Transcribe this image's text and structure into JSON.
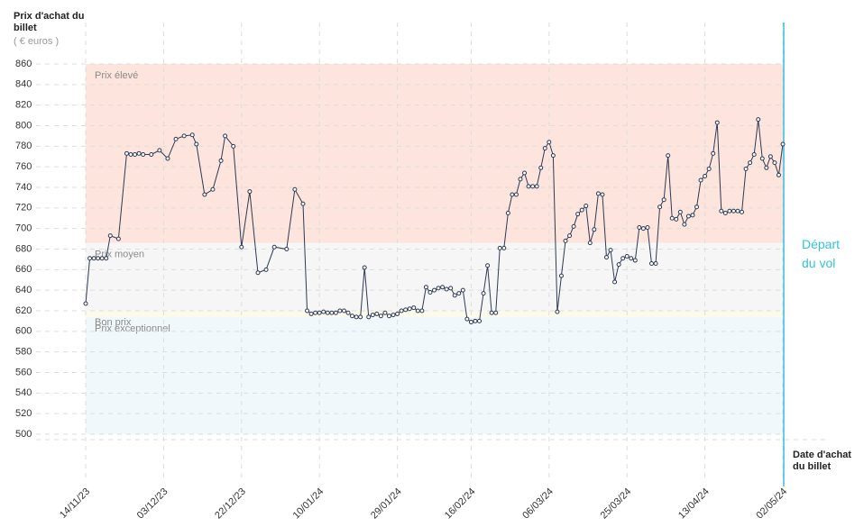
{
  "chart_data": {
    "type": "line",
    "y_label": "Prix d'achat du billet",
    "y_unit": "( € euros )",
    "x_label": "Date d'achat du billet",
    "departure_label": "Départ du vol",
    "ylim": [
      500,
      860
    ],
    "yticks": [
      500,
      520,
      540,
      560,
      580,
      600,
      620,
      640,
      660,
      680,
      700,
      720,
      740,
      760,
      780,
      800,
      820,
      840,
      860
    ],
    "xlim": [
      "14/11/23",
      "02/05/24"
    ],
    "xticks": [
      "14/11/23",
      "03/12/23",
      "22/12/23",
      "10/01/24",
      "29/01/24",
      "16/02/24",
      "06/03/24",
      "25/03/24",
      "13/04/24",
      "02/05/24"
    ],
    "grid": true,
    "bands": [
      {
        "label": "Prix élevé",
        "from": 686,
        "to": 860,
        "color": "#fde4dc"
      },
      {
        "label": "Prix moyen",
        "from": 620,
        "to": 686,
        "color": "#f6f6f6"
      },
      {
        "label": "Bon prix",
        "from": 614,
        "to": 620,
        "color": "#fcfbe9"
      },
      {
        "label": "Prix exceptionnel",
        "from": 500,
        "to": 614,
        "color": "#f1f8fb"
      }
    ],
    "series": [
      {
        "color": "#2d3a55",
        "x": [
          "14/11/23",
          "15/11/23",
          "16/11/23",
          "17/11/23",
          "18/11/23",
          "19/11/23",
          "20/11/23",
          "22/11/23",
          "24/11/23",
          "25/11/23",
          "26/11/23",
          "27/11/23",
          "28/11/23",
          "30/11/23",
          "02/12/23",
          "04/12/23",
          "06/12/23",
          "08/12/23",
          "10/12/23",
          "11/12/23",
          "13/12/23",
          "15/12/23",
          "17/12/23",
          "18/12/23",
          "20/12/23",
          "22/12/23",
          "24/12/23",
          "26/12/23",
          "28/12/23",
          "30/12/23",
          "02/01/24",
          "04/01/24",
          "06/01/24",
          "07/01/24",
          "08/01/24",
          "09/01/24",
          "10/01/24",
          "11/01/24",
          "12/01/24",
          "13/01/24",
          "14/01/24",
          "15/01/24",
          "16/01/24",
          "17/01/24",
          "18/01/24",
          "19/01/24",
          "20/01/24",
          "21/01/24",
          "22/01/24",
          "23/01/24",
          "24/01/24",
          "25/01/24",
          "26/01/24",
          "27/01/24",
          "28/01/24",
          "29/01/24",
          "30/01/24",
          "31/01/24",
          "01/02/24",
          "02/02/24",
          "03/02/24",
          "04/02/24",
          "05/02/24",
          "06/02/24",
          "07/02/24",
          "08/02/24",
          "09/02/24",
          "10/02/24",
          "11/02/24",
          "12/02/24",
          "13/02/24",
          "14/02/24",
          "15/02/24",
          "16/02/24",
          "17/02/24",
          "18/02/24",
          "19/02/24",
          "20/02/24",
          "21/02/24",
          "22/02/24",
          "23/02/24",
          "24/02/24",
          "25/02/24",
          "26/02/24",
          "27/02/24",
          "28/02/24",
          "29/02/24",
          "01/03/24",
          "02/03/24",
          "03/03/24",
          "04/03/24",
          "05/03/24",
          "06/03/24",
          "07/03/24",
          "08/03/24",
          "09/03/24",
          "10/03/24",
          "11/03/24",
          "12/03/24",
          "13/03/24",
          "14/03/24",
          "15/03/24",
          "16/03/24",
          "17/03/24",
          "18/03/24",
          "19/03/24",
          "20/03/24",
          "21/03/24",
          "22/03/24",
          "23/03/24",
          "24/03/24",
          "25/03/24",
          "26/03/24",
          "27/03/24",
          "28/03/24",
          "29/03/24",
          "30/03/24",
          "31/03/24",
          "01/04/24",
          "02/04/24",
          "03/04/24",
          "04/04/24",
          "05/04/24",
          "06/04/24",
          "07/04/24",
          "08/04/24",
          "09/04/24",
          "10/04/24",
          "11/04/24",
          "12/04/24",
          "13/04/24",
          "14/04/24",
          "15/04/24",
          "16/04/24",
          "17/04/24",
          "18/04/24",
          "19/04/24",
          "20/04/24",
          "21/04/24",
          "22/04/24",
          "23/04/24",
          "24/04/24",
          "25/04/24",
          "26/04/24",
          "27/04/24",
          "28/04/24",
          "29/04/24",
          "30/04/24",
          "01/05/24",
          "02/05/24"
        ],
        "values": [
          627,
          671,
          671,
          671,
          671,
          671,
          693,
          690,
          773,
          772,
          772,
          773,
          772,
          772,
          776,
          768,
          787,
          790,
          791,
          782,
          733,
          738,
          766,
          790,
          780,
          682,
          736,
          657,
          660,
          682,
          680,
          738,
          724,
          620,
          617,
          618,
          618,
          619,
          618,
          618,
          618,
          620,
          620,
          618,
          615,
          614,
          614,
          662,
          614,
          616,
          617,
          615,
          618,
          615,
          616,
          617,
          620,
          621,
          622,
          623,
          620,
          620,
          643,
          638,
          640,
          642,
          643,
          641,
          642,
          635,
          637,
          640,
          612,
          609,
          610,
          610,
          637,
          664,
          618,
          618,
          681,
          681,
          715,
          733,
          733,
          748,
          754,
          741,
          741,
          741,
          759,
          778,
          784,
          771,
          619,
          654,
          688,
          693,
          702,
          714,
          718,
          722,
          686,
          699,
          734,
          733,
          672,
          679,
          648,
          665,
          671,
          673,
          671,
          669,
          701,
          700,
          701,
          666,
          666,
          721,
          728,
          771,
          710,
          709,
          716,
          704,
          712,
          713,
          721,
          747,
          751,
          758,
          773,
          803,
          717,
          715,
          717,
          717,
          717,
          716,
          758,
          764,
          772,
          806,
          768,
          759,
          770,
          764,
          752,
          782
        ]
      }
    ]
  }
}
